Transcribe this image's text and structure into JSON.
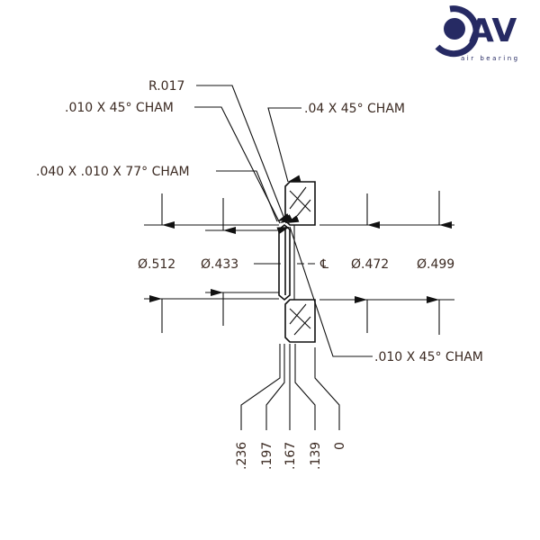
{
  "logo": {
    "text": "AV",
    "subtitle": "air bearing",
    "color": "#262a63"
  },
  "callouts": {
    "radius": "R.017",
    "cham_top_left": ".010 X 45° CHAM",
    "cham_top_right": ".04 X 45° CHAM",
    "cham_77": ".040 X .010 X 77° CHAM",
    "cham_bottom": ".010 X 45° CHAM"
  },
  "diameters": {
    "d512": "Ø.512",
    "d433": "Ø.433",
    "centerline": "℄",
    "d472": "Ø.472",
    "d499": "Ø.499"
  },
  "axial_dims": [
    ".236",
    ".197",
    ".167",
    ".139",
    "0"
  ],
  "text_color": "#3b2a22"
}
